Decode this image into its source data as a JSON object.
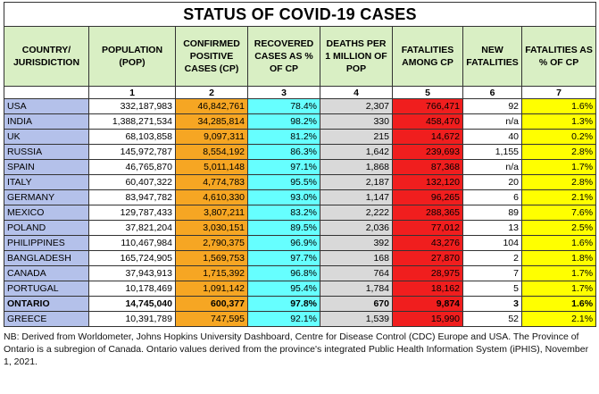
{
  "title": "STATUS OF COVID-19 CASES",
  "table": {
    "headers": [
      "COUNTRY/ JURISDICTION",
      "POPULATION (POP)",
      "CONFIRMED POSITIVE CASES (CP)",
      "RECOVERED CASES AS % OF CP",
      "DEATHS PER 1 MILLION OF POP",
      "FATALITIES AMONG CP",
      "NEW FATALITIES",
      "FATALITIES AS % OF CP"
    ],
    "column_numbers": [
      "1",
      "2",
      "3",
      "4",
      "5",
      "6",
      "7"
    ],
    "rows": [
      [
        "USA",
        "332,187,983",
        "46,842,761",
        "78.4%",
        "2,307",
        "766,471",
        "92",
        "1.6%"
      ],
      [
        "INDIA",
        "1,388,271,534",
        "34,285,814",
        "98.2%",
        "330",
        "458,470",
        "n/a",
        "1.3%"
      ],
      [
        "UK",
        "68,103,858",
        "9,097,311",
        "81.2%",
        "215",
        "14,672",
        "40",
        "0.2%"
      ],
      [
        "RUSSIA",
        "145,972,787",
        "8,554,192",
        "86.3%",
        "1,642",
        "239,693",
        "1,155",
        "2.8%"
      ],
      [
        "SPAIN",
        "46,765,870",
        "5,011,148",
        "97.1%",
        "1,868",
        "87,368",
        "n/a",
        "1.7%"
      ],
      [
        "ITALY",
        "60,407,322",
        "4,774,783",
        "95.5%",
        "2,187",
        "132,120",
        "20",
        "2.8%"
      ],
      [
        "GERMANY",
        "83,947,782",
        "4,610,330",
        "93.0%",
        "1,147",
        "96,265",
        "6",
        "2.1%"
      ],
      [
        "MEXICO",
        "129,787,433",
        "3,807,211",
        "83.2%",
        "2,222",
        "288,365",
        "89",
        "7.6%"
      ],
      [
        "POLAND",
        "37,821,204",
        "3,030,151",
        "89.5%",
        "2,036",
        "77,012",
        "13",
        "2.5%"
      ],
      [
        "PHILIPPINES",
        "110,467,984",
        "2,790,375",
        "96.9%",
        "392",
        "43,276",
        "104",
        "1.6%"
      ],
      [
        "BANGLADESH",
        "165,724,905",
        "1,569,753",
        "97.7%",
        "168",
        "27,870",
        "2",
        "1.8%"
      ],
      [
        "CANADA",
        "37,943,913",
        "1,715,392",
        "96.8%",
        "764",
        "28,975",
        "7",
        "1.7%"
      ],
      [
        "PORTUGAL",
        "10,178,469",
        "1,091,142",
        "95.4%",
        "1,784",
        "18,162",
        "5",
        "1.7%"
      ],
      [
        "ONTARIO",
        "14,745,040",
        "600,377",
        "97.8%",
        "670",
        "9,874",
        "3",
        "1.6%"
      ],
      [
        "GREECE",
        "10,391,789",
        "747,595",
        "92.1%",
        "1,539",
        "15,990",
        "52",
        "2.1%"
      ]
    ]
  },
  "footnote": "NB: Derived from Worldometer, Johns Hopkins University Dashboard, Centre for Disease Control (CDC) Europe and USA. The Province of Ontario is a subregion of Canada. Ontario values derived from the province's integrated Public Health Information System (iPHIS), November 1, 2021."
}
